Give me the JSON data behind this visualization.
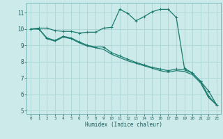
{
  "xlabel": "Humidex (Indice chaleur)",
  "bg_color": "#cceaea",
  "grid_color": "#aad4d4",
  "line_color": "#1a7a6e",
  "xlim": [
    -0.5,
    23.5
  ],
  "ylim": [
    4.8,
    11.6
  ],
  "xticks": [
    0,
    1,
    2,
    3,
    4,
    5,
    6,
    7,
    8,
    9,
    10,
    11,
    12,
    13,
    14,
    15,
    16,
    17,
    18,
    19,
    20,
    21,
    22,
    23
  ],
  "yticks": [
    5,
    6,
    7,
    8,
    9,
    10,
    11
  ],
  "line1_x": [
    0,
    1,
    2,
    3,
    4,
    5,
    6,
    7,
    8,
    9,
    10,
    11,
    12,
    13,
    14,
    15,
    16,
    17,
    18,
    19,
    20,
    21,
    22,
    23
  ],
  "line1_y": [
    10.0,
    10.05,
    10.05,
    9.9,
    9.85,
    9.85,
    9.75,
    9.8,
    9.8,
    10.05,
    10.1,
    11.2,
    10.95,
    10.5,
    10.75,
    11.05,
    11.2,
    11.2,
    10.7,
    7.6,
    7.3,
    6.8,
    6.2,
    5.35
  ],
  "line2_x": [
    0,
    1,
    2,
    3,
    4,
    5,
    6,
    7,
    8,
    9,
    10,
    11,
    12,
    13,
    14,
    15,
    16,
    17,
    18,
    19,
    20,
    21,
    22,
    23
  ],
  "line2_y": [
    10.0,
    10.0,
    9.45,
    9.3,
    9.55,
    9.45,
    9.2,
    9.0,
    8.9,
    8.9,
    8.55,
    8.35,
    8.15,
    7.95,
    7.8,
    7.65,
    7.55,
    7.45,
    7.55,
    7.5,
    7.3,
    6.8,
    5.9,
    5.35
  ],
  "line3_x": [
    0,
    1,
    2,
    3,
    4,
    5,
    6,
    7,
    8,
    9,
    10,
    11,
    12,
    13,
    14,
    15,
    16,
    17,
    18,
    19,
    20,
    21,
    22,
    23
  ],
  "line3_y": [
    10.0,
    10.0,
    9.4,
    9.25,
    9.5,
    9.4,
    9.15,
    8.95,
    8.85,
    8.75,
    8.45,
    8.25,
    8.05,
    7.9,
    7.75,
    7.6,
    7.45,
    7.35,
    7.45,
    7.4,
    7.2,
    6.7,
    5.8,
    5.35
  ]
}
